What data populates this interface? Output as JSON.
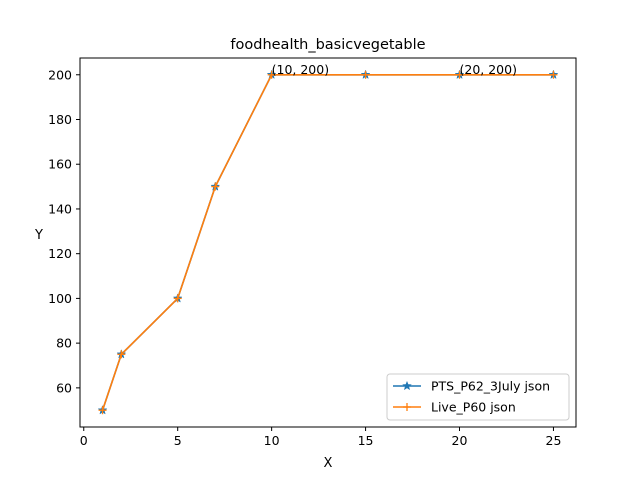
{
  "chart_data": {
    "type": "line",
    "title": "foodhealth_basicvegetable",
    "xlabel": "X",
    "ylabel": "Y",
    "xlim": [
      -0.2,
      26.2
    ],
    "ylim": [
      42.5,
      207.5
    ],
    "xticks": [
      0,
      5,
      10,
      15,
      20,
      25
    ],
    "yticks": [
      60,
      80,
      100,
      120,
      140,
      160,
      180,
      200
    ],
    "grid": false,
    "legend_position": "lower right",
    "x": [
      1,
      2,
      5,
      7,
      10,
      15,
      20,
      25
    ],
    "series": [
      {
        "name": "PTS_P62_3July json",
        "values": [
          50,
          75,
          100,
          150,
          200,
          200,
          200,
          200
        ],
        "color": "#1f77b4",
        "marker": "star"
      },
      {
        "name": "Live_P60 json",
        "values": [
          50,
          75,
          100,
          150,
          200,
          200,
          200,
          200
        ],
        "color": "#ff7f0e",
        "marker": "plus"
      }
    ],
    "annotations": [
      {
        "text": "(10, 200)",
        "x": 10,
        "y": 200
      },
      {
        "text": "(20, 200)",
        "x": 20,
        "y": 200
      }
    ]
  }
}
